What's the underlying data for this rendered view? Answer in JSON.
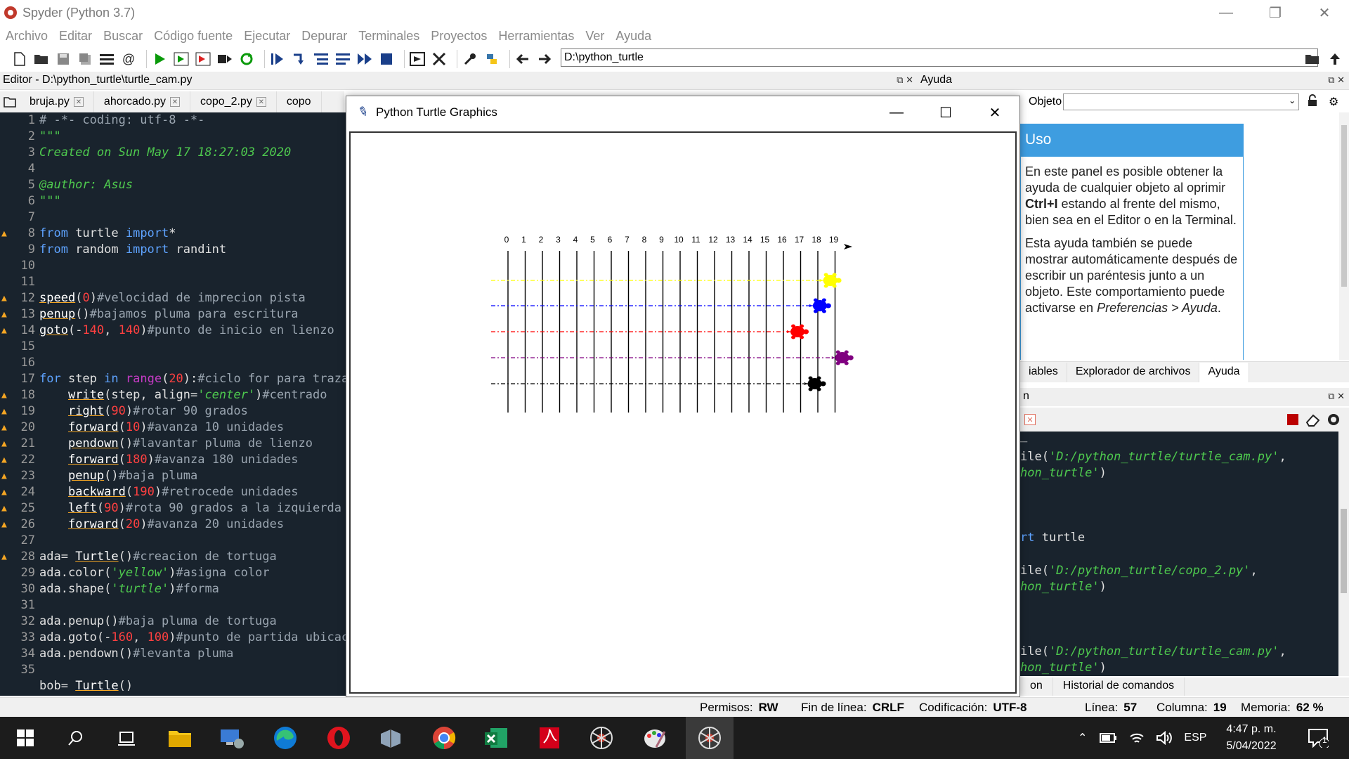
{
  "window": {
    "title": "Spyder (Python 3.7)",
    "minimize": "—",
    "restore": "❐",
    "close": "✕"
  },
  "menu": [
    "Archivo",
    "Editar",
    "Buscar",
    "Código fuente",
    "Ejecutar",
    "Depurar",
    "Terminales",
    "Proyectos",
    "Herramientas",
    "Ver",
    "Ayuda"
  ],
  "toolbar": {
    "path": "D:\\python_turtle"
  },
  "editor": {
    "header": "Editor - D:\\python_turtle\\turtle_cam.py",
    "tabs": [
      "bruja.py",
      "ahorcado.py",
      "copo_2.py",
      "copo"
    ],
    "lines": [
      {
        "n": "1",
        "warn": false
      },
      {
        "n": "2",
        "warn": false
      },
      {
        "n": "3",
        "warn": false
      },
      {
        "n": "4",
        "warn": false
      },
      {
        "n": "5",
        "warn": false
      },
      {
        "n": "6",
        "warn": false
      },
      {
        "n": "7",
        "warn": false
      },
      {
        "n": "8",
        "warn": true
      },
      {
        "n": "9",
        "warn": false
      },
      {
        "n": "10",
        "warn": false
      },
      {
        "n": "11",
        "warn": false
      },
      {
        "n": "12",
        "warn": true
      },
      {
        "n": "13",
        "warn": true
      },
      {
        "n": "14",
        "warn": true
      },
      {
        "n": "15",
        "warn": false
      },
      {
        "n": "16",
        "warn": false
      },
      {
        "n": "17",
        "warn": false
      },
      {
        "n": "18",
        "warn": true
      },
      {
        "n": "19",
        "warn": true
      },
      {
        "n": "20",
        "warn": true
      },
      {
        "n": "21",
        "warn": true
      },
      {
        "n": "22",
        "warn": true
      },
      {
        "n": "23",
        "warn": true
      },
      {
        "n": "24",
        "warn": true
      },
      {
        "n": "25",
        "warn": true
      },
      {
        "n": "26",
        "warn": true
      },
      {
        "n": "27",
        "warn": false
      },
      {
        "n": "28",
        "warn": true
      },
      {
        "n": "29",
        "warn": false
      },
      {
        "n": "30",
        "warn": false
      },
      {
        "n": "31",
        "warn": false
      },
      {
        "n": "32",
        "warn": false
      },
      {
        "n": "33",
        "warn": false
      },
      {
        "n": "34",
        "warn": false
      },
      {
        "n": "35",
        "warn": false
      },
      {
        "n": "",
        "warn": false
      }
    ],
    "code": {
      "l1": "# -*- coding: utf-8 -*-",
      "l2": "\"\"\"",
      "l3": "Created on Sun May 17 18:27:03 2020",
      "l5": "@author: Asus",
      "l6": "\"\"\"",
      "l8a": "from",
      "l8b": " turtle ",
      "l8c": "import",
      "l8d": "*",
      "l9a": "from",
      "l9b": " random ",
      "l9c": "import",
      "l9d": " randint",
      "l12a": "speed",
      "l12b": "(",
      "l12c": "0",
      "l12d": ")",
      "l12e": "#velocidad de imprecion pista",
      "l13a": "penup",
      "l13b": "()",
      "l13c": "#bajamos pluma para escritura",
      "l14a": "goto",
      "l14b": "(-",
      "l14c": "140",
      "l14d": ", ",
      "l14e": "140",
      "l14f": ")",
      "l14g": "#punto de inicio en lienzo",
      "l17a": "for",
      "l17b": " step ",
      "l17c": "in",
      "l17d": " ",
      "l17e": "range",
      "l17f": "(",
      "l17g": "20",
      "l17h": "):",
      "l17i": "#ciclo for para trazar",
      "l18a": "    ",
      "l18b": "write",
      "l18c": "(step, align=",
      "l18d": "'center'",
      "l18e": ")",
      "l18f": "#centrado",
      "l19a": "    ",
      "l19b": "right",
      "l19c": "(",
      "l19d": "90",
      "l19e": ")",
      "l19f": "#rotar 90 grados",
      "l20a": "    ",
      "l20b": "forward",
      "l20c": "(",
      "l20d": "10",
      "l20e": ")",
      "l20f": "#avanza 10 unidades",
      "l21a": "    ",
      "l21b": "pendown",
      "l21c": "()",
      "l21d": "#lavantar pluma de lienzo",
      "l22a": "    ",
      "l22b": "forward",
      "l22c": "(",
      "l22d": "180",
      "l22e": ")",
      "l22f": "#avanza 180 unidades",
      "l23a": "    ",
      "l23b": "penup",
      "l23c": "()",
      "l23d": "#baja pluma",
      "l24a": "    ",
      "l24b": "backward",
      "l24c": "(",
      "l24d": "190",
      "l24e": ")",
      "l24f": "#retrocede unidades",
      "l25a": "    ",
      "l25b": "left",
      "l25c": "(",
      "l25d": "90",
      "l25e": ")",
      "l25f": "#rota 90 grados a la izquierda",
      "l26a": "    ",
      "l26b": "forward",
      "l26c": "(",
      "l26d": "20",
      "l26e": ")",
      "l26f": "#avanza 20 unidades",
      "l28a": "ada= ",
      "l28b": "Turtle",
      "l28c": "()",
      "l28d": "#creacion de tortuga",
      "l29a": "ada.color(",
      "l29b": "'yellow'",
      "l29c": ")",
      "l29d": "#asigna color",
      "l30a": "ada.shape(",
      "l30b": "'turtle'",
      "l30c": ")",
      "l30d": "#forma",
      "l32a": "ada.penup()",
      "l32b": "#baja pluma de tortuga",
      "l33a": "ada.goto(-",
      "l33b": "160",
      "l33c": ", ",
      "l33d": "100",
      "l33e": ")",
      "l33f": "#punto de partida ubicacion",
      "l34a": "ada.pendown()",
      "l34b": "#levanta pluma",
      "l36a": "bob= ",
      "l36b": "Turtle",
      "l36c": "()"
    }
  },
  "turtle_window": {
    "title": "Python Turtle Graphics",
    "minimize": "—",
    "maximize": "☐",
    "close": "✕",
    "track_numbers": [
      "0",
      "1",
      "2",
      "3",
      "4",
      "5",
      "6",
      "7",
      "8",
      "9",
      "10",
      "11",
      "12",
      "13",
      "14",
      "15",
      "16",
      "17",
      "18",
      "19"
    ],
    "racers": [
      {
        "color": "#ffff00",
        "progress_step": 18.8
      },
      {
        "color": "#0000ff",
        "progress_step": 18.2
      },
      {
        "color": "#ff0000",
        "progress_step": 16.9
      },
      {
        "color": "#800080",
        "progress_step": 19.5
      },
      {
        "color": "#000000",
        "progress_step": 17.9
      }
    ]
  },
  "help": {
    "header": "Ayuda",
    "object_label": "Objeto",
    "card_title": "Uso",
    "p1a": "En este panel es posible obtener la ayuda de cualquier objeto al oprimir ",
    "p1b": "Ctrl+I",
    "p1c": " estando al frente del mismo, bien sea en el Editor o en la Terminal.",
    "p2a": "Esta ayuda también se puede mostrar automáticamente después de escribir un paréntesis junto a un objeto. Este comportamiento puede activarse en ",
    "p2b": "Preferencias > Ayuda",
    "p2c": ".",
    "tabs": [
      "iables",
      "Explorador de archivos",
      "Ayuda"
    ]
  },
  "console": {
    "header": "n",
    "lines": {
      "c0": "_",
      "c1a": "ile(",
      "c1b": "'D:/python_turtle/turtle_cam.py'",
      "c1c": ",",
      "c2a": "hon_turtle'",
      "c2b": ")",
      "c3a": "rt",
      "c3b": " turtle",
      "c4a": "ile(",
      "c4b": "'D:/python_turtle/copo_2.py'",
      "c4c": ",",
      "c5a": "hon_turtle'",
      "c5b": ")",
      "c6a": "ile(",
      "c6b": "'D:/python_turtle/turtle_cam.py'",
      "c6c": ",",
      "c7a": "hon_turtle'",
      "c7b": ")"
    },
    "bottom_tabs": [
      "on",
      "Historial de comandos"
    ]
  },
  "status": {
    "permisos_label": "Permisos:",
    "permisos": "RW",
    "fin_label": "Fin de línea:",
    "fin": "CRLF",
    "cod_label": "Codificación:",
    "cod": "UTF-8",
    "linea_label": "Línea:",
    "linea": "57",
    "col_label": "Columna:",
    "col": "19",
    "mem_label": "Memoria:",
    "mem": "62 %"
  },
  "taskbar": {
    "lang": "ESP",
    "time": "4:47 p. m.",
    "date": "5/04/2022",
    "notif": "1"
  }
}
